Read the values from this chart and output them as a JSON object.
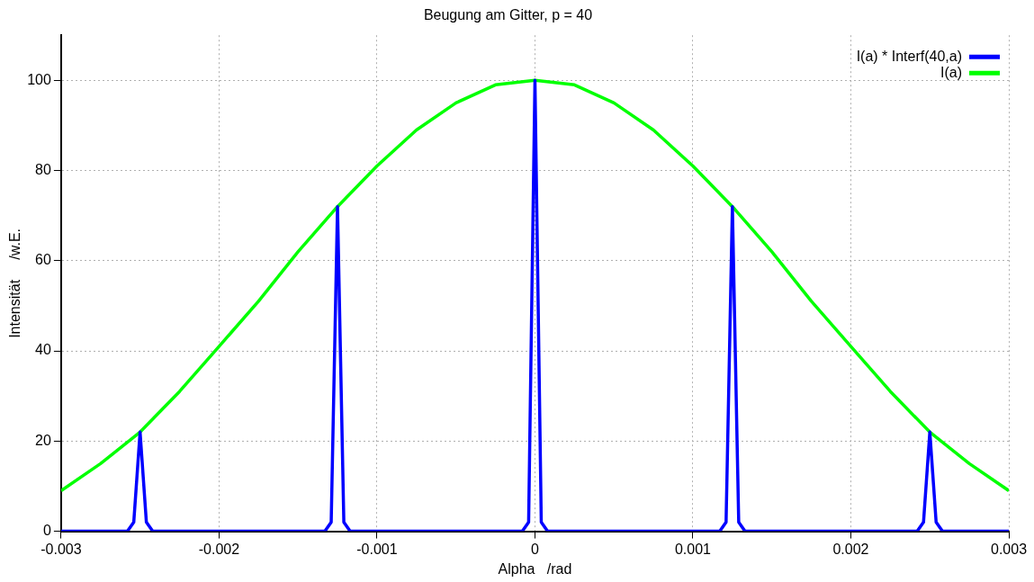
{
  "chart_data": {
    "type": "line",
    "title": "Beugung am Gitter, p = 40",
    "xlabel": "Alpha   /rad",
    "ylabel": "Intensität     /w.E.",
    "xlim": [
      -0.003,
      0.003
    ],
    "xticks": [
      -0.003,
      -0.002,
      -0.001,
      0,
      0.001,
      0.002,
      0.003
    ],
    "ylim": [
      0,
      110
    ],
    "yticks": [
      0,
      20,
      40,
      60,
      80,
      100
    ],
    "grid": true,
    "legend": "top right",
    "marker": "none",
    "line_style": "solid",
    "series": [
      {
        "name": "I(a) * Interf(40,a)",
        "color": "#0000ff",
        "x": [
          -0.003,
          -0.00258,
          -0.00254,
          -0.0025,
          -0.00246,
          -0.00242,
          -0.00133,
          -0.00129,
          -0.00125,
          -0.00121,
          -0.00117,
          -8e-05,
          -4e-05,
          0,
          4e-05,
          8e-05,
          0.00117,
          0.00121,
          0.00125,
          0.00129,
          0.00133,
          0.00242,
          0.00246,
          0.0025,
          0.00254,
          0.00258,
          0.003
        ],
        "values": [
          0,
          0,
          2,
          22,
          2,
          0,
          0,
          2,
          72,
          2,
          0,
          0,
          2,
          100,
          2,
          0,
          0,
          2,
          72,
          2,
          0,
          0,
          2,
          22,
          2,
          0,
          0
        ]
      },
      {
        "name": "I(a)",
        "color": "#00ff00",
        "x": [
          -0.003,
          -0.00275,
          -0.0025,
          -0.00225,
          -0.002,
          -0.00175,
          -0.0015,
          -0.00125,
          -0.001,
          -0.00075,
          -0.0005,
          -0.00025,
          0,
          0.00025,
          0.0005,
          0.00075,
          0.001,
          0.00125,
          0.0015,
          0.00175,
          0.002,
          0.00225,
          0.0025,
          0.00275,
          0.003
        ],
        "values": [
          9,
          15,
          22,
          31,
          41,
          51,
          62,
          72,
          81,
          89,
          95,
          99,
          100,
          99,
          95,
          89,
          81,
          72,
          62,
          51,
          41,
          31,
          22,
          15,
          9
        ]
      }
    ]
  }
}
